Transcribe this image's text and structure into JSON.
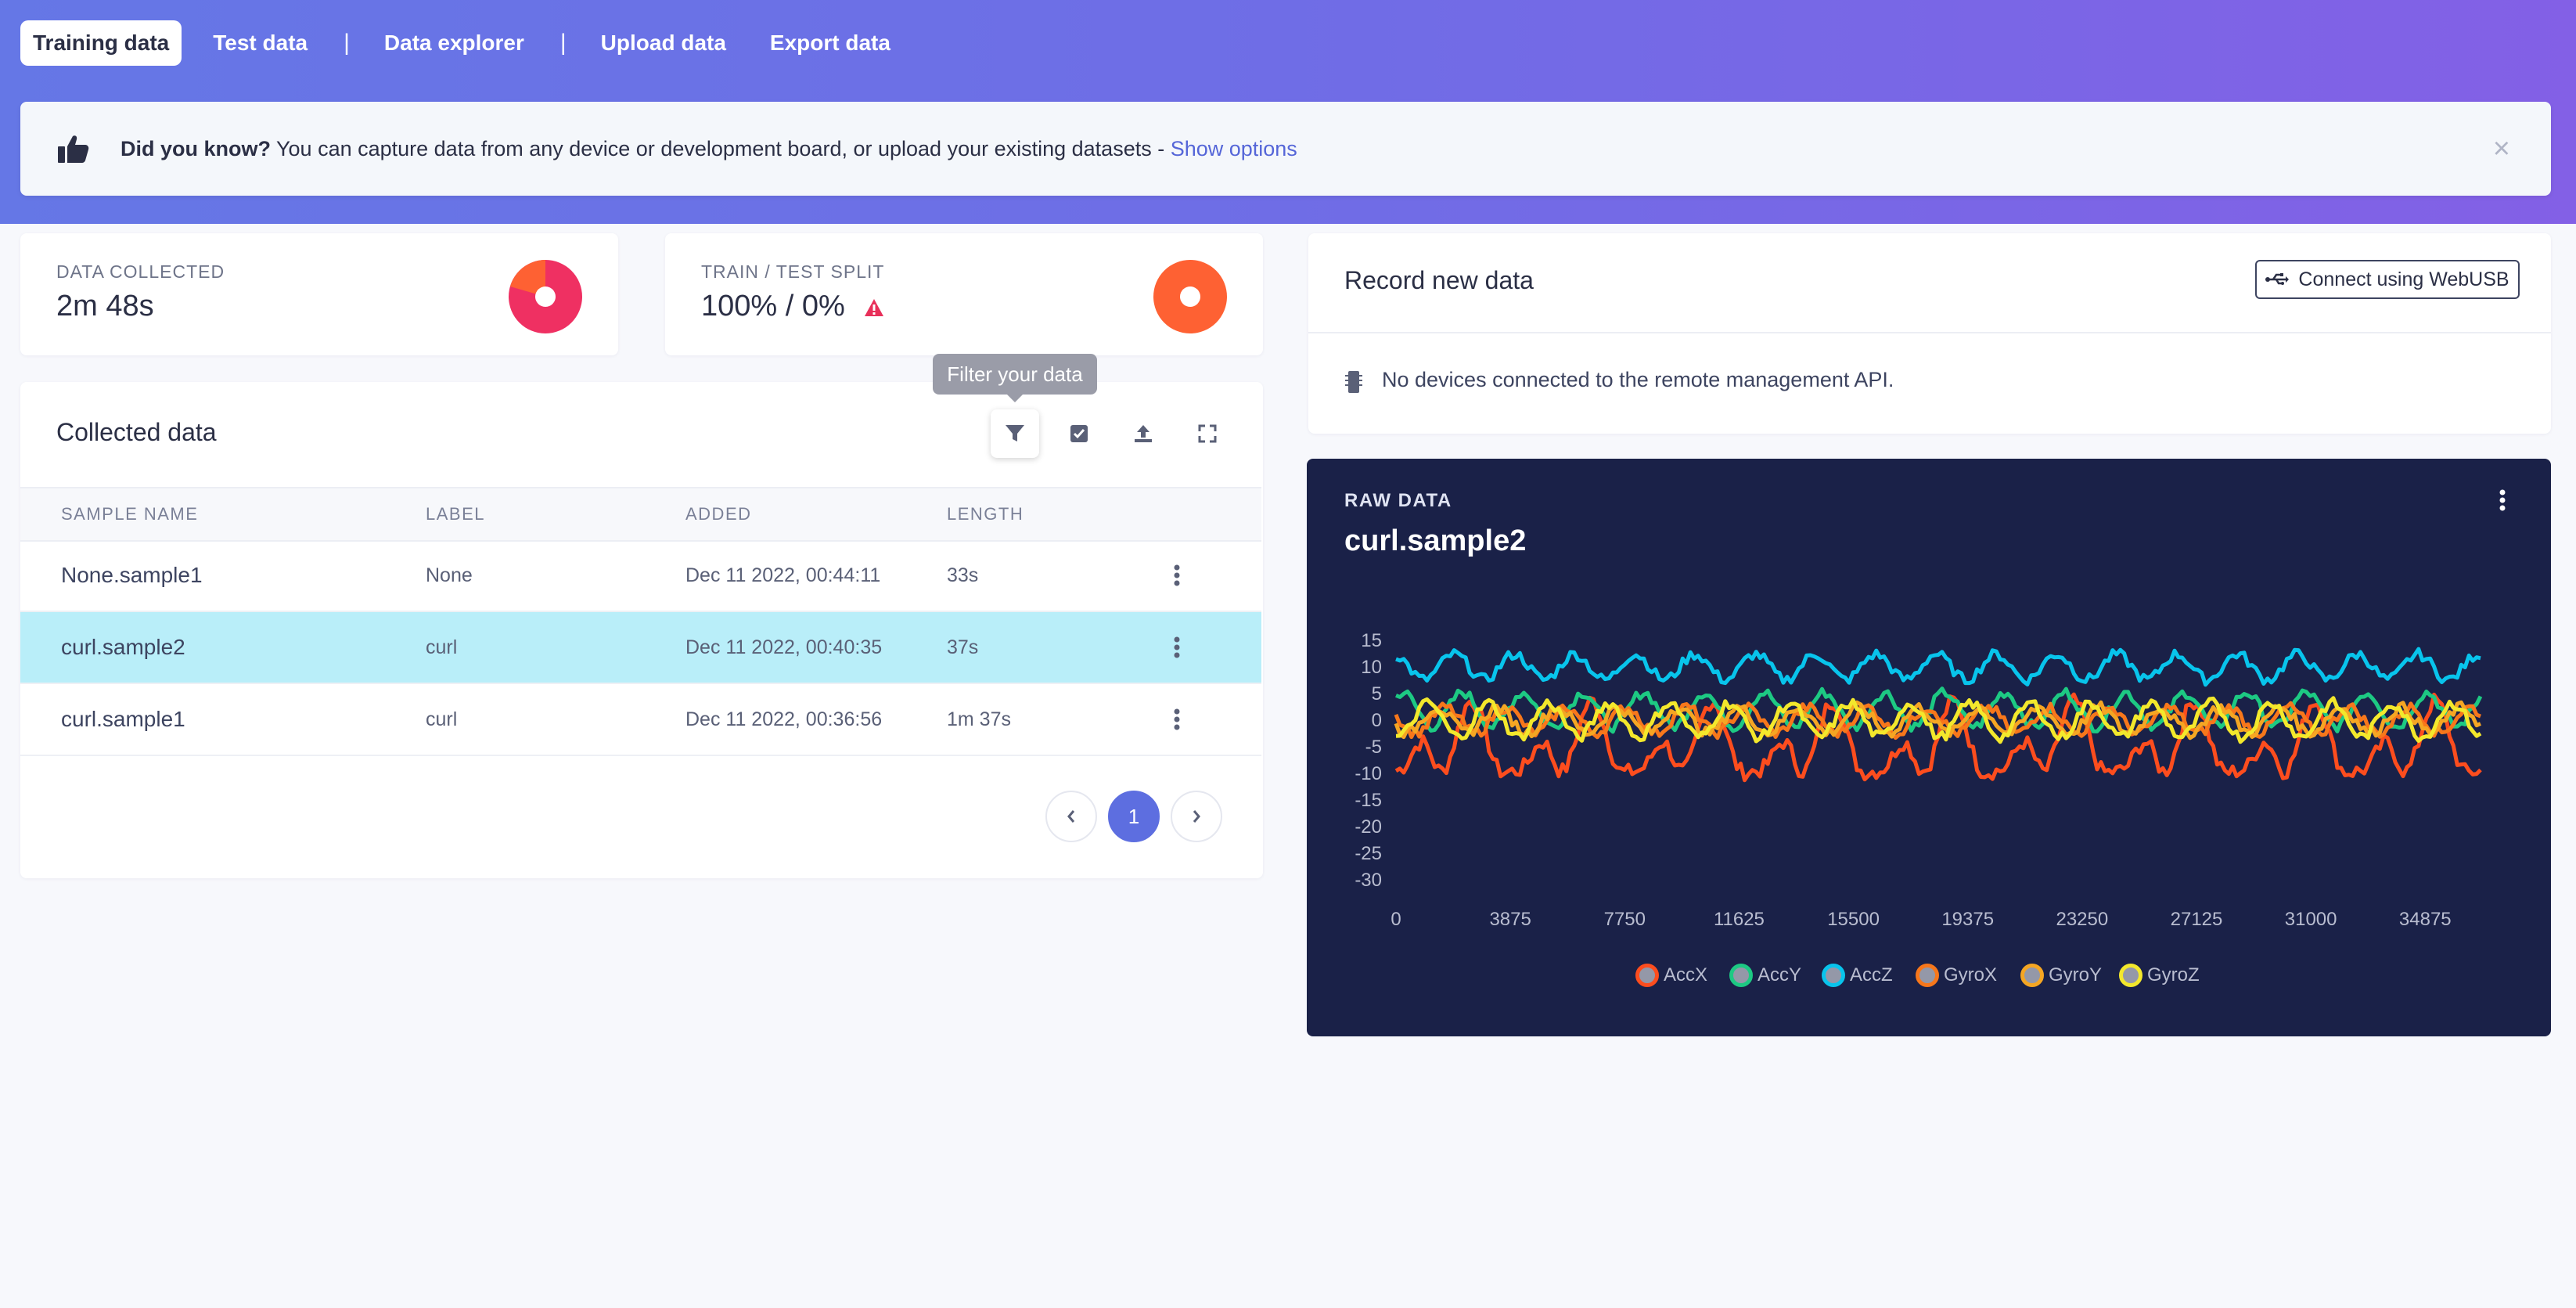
{
  "tabs": [
    {
      "label": "Training data",
      "active": true
    },
    {
      "label": "Test data"
    },
    {
      "label": "Data explorer"
    },
    {
      "label": "Upload data"
    },
    {
      "label": "Export data"
    }
  ],
  "tab_separator": "|",
  "banner": {
    "bold": "Did you know?",
    "text": " You can capture data from any device or development board, or upload your existing datasets - ",
    "link": "Show options",
    "close": "×",
    "icon": "thumbs-up-icon"
  },
  "stats": {
    "collected_label": "DATA COLLECTED",
    "collected_value": "2m 48s",
    "split_label": "TRAIN / TEST SPLIT",
    "split_value": "100% / 0%",
    "train_fraction": 1.0
  },
  "collected": {
    "title": "Collected data",
    "tooltip": "Filter your data",
    "columns": [
      "SAMPLE NAME",
      "LABEL",
      "ADDED",
      "LENGTH"
    ],
    "rows": [
      {
        "name": "None.sample1",
        "label": "None",
        "added": "Dec 11 2022, 00:44:11",
        "length": "33s"
      },
      {
        "name": "curl.sample2",
        "label": "curl",
        "added": "Dec 11 2022, 00:40:35",
        "length": "37s",
        "selected": true
      },
      {
        "name": "curl.sample1",
        "label": "curl",
        "added": "Dec 11 2022, 00:36:56",
        "length": "1m 37s"
      }
    ],
    "page": "1"
  },
  "record": {
    "title": "Record new data",
    "connect_button": "Connect using WebUSB",
    "no_devices": "No devices connected to the remote management API."
  },
  "raw": {
    "label": "RAW DATA",
    "title": "curl.sample2"
  },
  "colors": {
    "accent": "#5d6ee0",
    "selected_row": "#b9eef9",
    "pie_main": "#ef3062",
    "pie_split": "#fe6133",
    "warning": "#e8305a"
  },
  "chart_data": {
    "type": "line",
    "x_ticks": [
      "0",
      "3875",
      "7750",
      "11625",
      "15500",
      "19375",
      "23250",
      "27125",
      "31000",
      "34875"
    ],
    "y_ticks": [
      "15",
      "10",
      "5",
      "0",
      "-5",
      "-10",
      "-15",
      "-20",
      "-25",
      "-30"
    ],
    "xlim": [
      0,
      36750
    ],
    "ylim": [
      -30,
      15
    ],
    "legend_position": "bottom",
    "grid": false,
    "series": [
      {
        "name": "AccX",
        "color": "#fd4d1e",
        "approx_center": -3,
        "approx_amplitude": 12
      },
      {
        "name": "AccY",
        "color": "#1dc983",
        "approx_center": 2,
        "approx_amplitude": 4
      },
      {
        "name": "AccZ",
        "color": "#08c4ec",
        "approx_center": 10,
        "approx_amplitude": 3
      },
      {
        "name": "GyroX",
        "color": "#f7771b",
        "approx_center": 0,
        "approx_amplitude": 3
      },
      {
        "name": "GyroY",
        "color": "#f5a623",
        "approx_center": 0,
        "approx_amplitude": 3
      },
      {
        "name": "GyroZ",
        "color": "#f3e82c",
        "approx_center": 0,
        "approx_amplitude": 4
      }
    ]
  }
}
